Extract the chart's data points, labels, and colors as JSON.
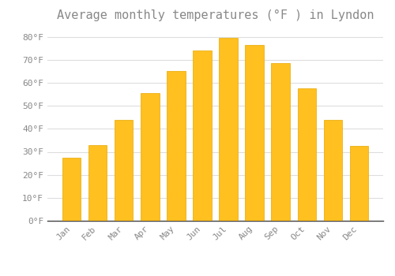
{
  "title": "Average monthly temperatures (°F ) in Lyndon",
  "months": [
    "Jan",
    "Feb",
    "Mar",
    "Apr",
    "May",
    "Jun",
    "Jul",
    "Aug",
    "Sep",
    "Oct",
    "Nov",
    "Dec"
  ],
  "values": [
    27.5,
    33.0,
    44.0,
    55.5,
    65.0,
    74.0,
    79.5,
    76.5,
    68.5,
    57.5,
    44.0,
    32.5
  ],
  "bar_color": "#FFC020",
  "bar_edge_color": "#E8A800",
  "background_color": "#FFFFFF",
  "grid_color": "#DDDDDD",
  "text_color": "#888888",
  "ylim": [
    0,
    84
  ],
  "yticks": [
    0,
    10,
    20,
    30,
    40,
    50,
    60,
    70,
    80
  ],
  "ytick_labels": [
    "0°F",
    "10°F",
    "20°F",
    "30°F",
    "40°F",
    "50°F",
    "60°F",
    "70°F",
    "80°F"
  ],
  "title_fontsize": 11,
  "tick_fontsize": 8
}
